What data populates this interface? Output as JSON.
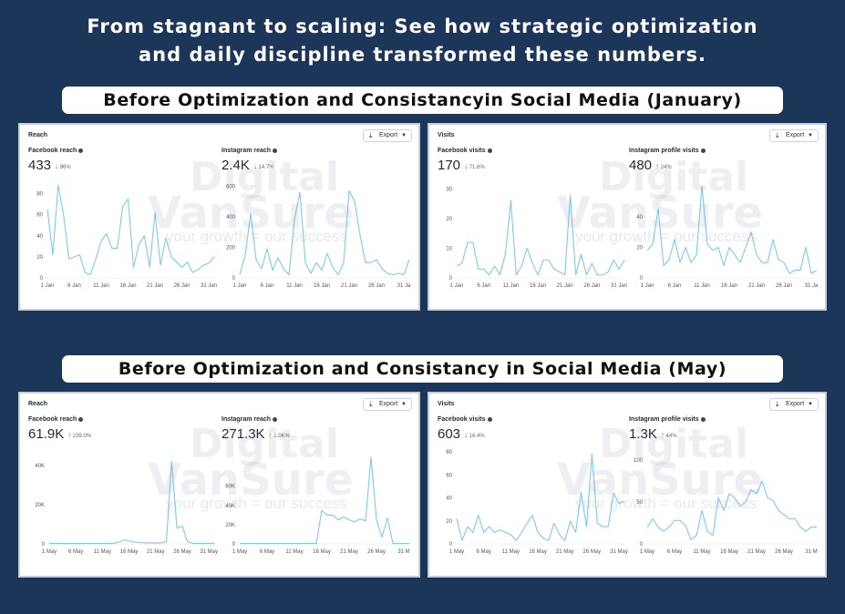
{
  "headline": {
    "line1": "From stagnant to scaling: See how strategic optimization",
    "line2": "and daily discipline transformed these numbers."
  },
  "sections": {
    "january_label": "Before Optimization and Consistancyin Social Media (January)",
    "may_label": "Before Optimization and Consistancy in Social Media (May)"
  },
  "watermark": {
    "brand": "Digital",
    "brand2": "VanSure",
    "tm": "TM",
    "tagline": "your growth = our success"
  },
  "icons": {
    "export": "download-icon",
    "dropdown": "chevron-down-icon",
    "info": "info-icon"
  },
  "colors": {
    "line": "#7fc8f0",
    "background": "#1c365a"
  },
  "cards": {
    "jan_reach": {
      "title": "Reach",
      "export": "Export",
      "m1": {
        "label": "Facebook reach",
        "value": "433",
        "arrow": "↓",
        "change": "96%"
      },
      "m2": {
        "label": "Instagram reach",
        "value": "2.4K",
        "arrow": "↓",
        "change": "14.7%"
      }
    },
    "jan_visits": {
      "title": "Visits",
      "export": "Export",
      "m1": {
        "label": "Facebook visits",
        "value": "170",
        "arrow": "↓",
        "change": "71.6%"
      },
      "m2": {
        "label": "Instagram profile visits",
        "value": "480",
        "arrow": "↑",
        "change": "24%"
      }
    },
    "may_reach": {
      "title": "Reach",
      "export": "Export",
      "m1": {
        "label": "Facebook reach",
        "value": "61.9K",
        "arrow": "↑",
        "change": "239.0%"
      },
      "m2": {
        "label": "Instagram reach",
        "value": "271.3K",
        "arrow": "↑",
        "change": "1.0K%"
      }
    },
    "may_visits": {
      "title": "Visits",
      "export": "Export",
      "m1": {
        "label": "Facebook visits",
        "value": "603",
        "arrow": "↓",
        "change": "16.4%"
      },
      "m2": {
        "label": "Instagram profile visits",
        "value": "1.3K",
        "arrow": "↑",
        "change": "44%"
      }
    }
  },
  "chart_data": [
    {
      "id": "jan_fb_reach",
      "type": "line",
      "title": "Facebook reach",
      "ylim": [
        0,
        90
      ],
      "yticks": [
        "0",
        "20",
        "40",
        "60",
        "80"
      ],
      "ytick_values": [
        0,
        20,
        40,
        60,
        80
      ],
      "xticks": [
        "1 Jan",
        "6 Jan",
        "11 Jan",
        "16 Jan",
        "21 Jan",
        "26 Jan",
        "31 Jan"
      ],
      "xtick_positions": [
        1,
        6,
        11,
        16,
        21,
        26,
        31
      ],
      "x": [
        1,
        2,
        3,
        4,
        5,
        6,
        7,
        8,
        9,
        10,
        11,
        12,
        13,
        14,
        15,
        16,
        17,
        18,
        19,
        20,
        21,
        22,
        23,
        24,
        25,
        26,
        27,
        28,
        29,
        30,
        31,
        32
      ],
      "values": [
        65,
        22,
        88,
        60,
        18,
        20,
        22,
        5,
        3,
        18,
        35,
        42,
        28,
        28,
        68,
        75,
        10,
        32,
        40,
        10,
        62,
        12,
        38,
        20,
        15,
        10,
        15,
        5,
        8,
        12,
        14,
        20
      ]
    },
    {
      "id": "jan_ig_reach",
      "type": "line",
      "title": "Instagram reach",
      "ylim": [
        0,
        620
      ],
      "yticks": [
        "0",
        "200",
        "400",
        "600"
      ],
      "ytick_values": [
        0,
        200,
        400,
        600
      ],
      "xticks": [
        "1 Jan",
        "6 Jan",
        "11 Jan",
        "16 Jan",
        "21 Jan",
        "26 Jan",
        "31 Ja"
      ],
      "xtick_positions": [
        1,
        6,
        11,
        16,
        21,
        26,
        31
      ],
      "x": [
        1,
        2,
        3,
        4,
        5,
        6,
        7,
        8,
        9,
        10,
        11,
        12,
        13,
        14,
        15,
        16,
        17,
        18,
        19,
        20,
        21,
        22,
        23,
        24,
        25,
        26,
        27,
        28,
        29,
        30,
        31,
        32
      ],
      "values": [
        20,
        150,
        420,
        120,
        60,
        190,
        50,
        130,
        60,
        20,
        380,
        560,
        100,
        30,
        100,
        50,
        160,
        70,
        20,
        100,
        570,
        500,
        280,
        100,
        100,
        120,
        60,
        30,
        20,
        30,
        20,
        120
      ]
    },
    {
      "id": "jan_fb_visits",
      "type": "line",
      "title": "Facebook visits",
      "ylim": [
        0,
        32
      ],
      "yticks": [
        "0",
        "10",
        "20",
        "30"
      ],
      "ytick_values": [
        0,
        10,
        20,
        30
      ],
      "xticks": [
        "1 Jan",
        "6 Jan",
        "11 Jan",
        "16 Jan",
        "21 Jan",
        "26 Jan",
        "31 Jan"
      ],
      "xtick_positions": [
        1,
        6,
        11,
        16,
        21,
        26,
        31
      ],
      "x": [
        1,
        2,
        3,
        4,
        5,
        6,
        7,
        8,
        9,
        10,
        11,
        12,
        13,
        14,
        15,
        16,
        17,
        18,
        19,
        20,
        21,
        22,
        23,
        24,
        25,
        26,
        27,
        28,
        29,
        30,
        31,
        32
      ],
      "values": [
        4,
        5,
        12,
        12,
        3,
        3,
        1,
        4,
        1,
        8,
        26,
        1,
        4,
        10,
        5,
        1,
        6,
        6,
        3,
        2,
        1,
        28,
        1,
        8,
        1,
        5,
        1,
        1,
        2,
        6,
        3,
        6
      ]
    },
    {
      "id": "jan_ig_visits",
      "type": "line",
      "title": "Instagram profile visits",
      "ylim": [
        0,
        62
      ],
      "yticks": [
        "0",
        "20",
        "40"
      ],
      "ytick_values": [
        0,
        20,
        40
      ],
      "xticks": [
        "1 Jan",
        "6 Jan",
        "11 Jan",
        "16 Jan",
        "21 Jan",
        "26 Jan",
        "31 Ja"
      ],
      "xtick_positions": [
        1,
        6,
        11,
        16,
        21,
        26,
        31
      ],
      "x": [
        1,
        2,
        3,
        4,
        5,
        6,
        7,
        8,
        9,
        10,
        11,
        12,
        13,
        14,
        15,
        16,
        17,
        18,
        19,
        20,
        21,
        22,
        23,
        24,
        25,
        26,
        27,
        28,
        29,
        30,
        31,
        32
      ],
      "values": [
        18,
        22,
        45,
        8,
        12,
        25,
        10,
        20,
        10,
        15,
        60,
        22,
        18,
        20,
        8,
        20,
        15,
        10,
        20,
        30,
        15,
        10,
        10,
        25,
        12,
        10,
        3,
        5,
        5,
        20,
        3,
        5
      ]
    },
    {
      "id": "may_fb_reach",
      "type": "line",
      "title": "Facebook reach",
      "ylim": [
        0,
        45000
      ],
      "yticks": [
        "0",
        "20K",
        "40K"
      ],
      "ytick_values": [
        0,
        20000,
        40000
      ],
      "xticks": [
        "1 May",
        "6 May",
        "11 May",
        "16 May",
        "21 May",
        "26 May",
        "31 May"
      ],
      "xtick_positions": [
        1,
        6,
        11,
        16,
        21,
        26,
        31
      ],
      "x": [
        1,
        2,
        3,
        4,
        5,
        6,
        7,
        8,
        9,
        10,
        11,
        12,
        13,
        14,
        15,
        16,
        17,
        18,
        19,
        20,
        21,
        22,
        23,
        24,
        25,
        26,
        27,
        28,
        29,
        30,
        31,
        32
      ],
      "values": [
        200,
        200,
        200,
        200,
        200,
        200,
        200,
        200,
        200,
        200,
        200,
        200,
        300,
        800,
        2000,
        1500,
        1000,
        700,
        500,
        500,
        500,
        500,
        1000,
        42000,
        8000,
        9000,
        1000,
        300,
        200,
        200,
        200,
        200
      ]
    },
    {
      "id": "may_ig_reach",
      "type": "line",
      "title": "Instagram reach",
      "ylim": [
        0,
        92000
      ],
      "yticks": [
        "0",
        "20K",
        "40K",
        "60K"
      ],
      "ytick_values": [
        0,
        20000,
        40000,
        60000
      ],
      "xticks": [
        "1 May",
        "6 May",
        "11 May",
        "16 May",
        "21 May",
        "26 May",
        "31 M"
      ],
      "xtick_positions": [
        1,
        6,
        11,
        16,
        21,
        26,
        31
      ],
      "x": [
        1,
        2,
        3,
        4,
        5,
        6,
        7,
        8,
        9,
        10,
        11,
        12,
        13,
        14,
        15,
        16,
        17,
        18,
        19,
        20,
        21,
        22,
        23,
        24,
        25,
        26,
        27,
        28,
        29,
        30,
        31,
        32
      ],
      "values": [
        500,
        500,
        500,
        500,
        500,
        500,
        500,
        500,
        500,
        500,
        500,
        500,
        500,
        500,
        500,
        35000,
        30000,
        30000,
        25000,
        28000,
        25000,
        23000,
        26000,
        24000,
        90000,
        25000,
        7000,
        27000,
        500,
        500,
        500,
        500
      ]
    },
    {
      "id": "may_fb_visits",
      "type": "line",
      "title": "Facebook visits",
      "ylim": [
        0,
        80
      ],
      "yticks": [
        "0",
        "20",
        "40",
        "60",
        "80"
      ],
      "ytick_values": [
        0,
        20,
        40,
        60,
        80
      ],
      "xticks": [
        "1 May",
        "6 May",
        "11 May",
        "16 May",
        "21 May",
        "26 May",
        "31 May"
      ],
      "xtick_positions": [
        1,
        6,
        11,
        16,
        21,
        26,
        31
      ],
      "x": [
        1,
        2,
        3,
        4,
        5,
        6,
        7,
        8,
        9,
        10,
        11,
        12,
        13,
        14,
        15,
        16,
        17,
        18,
        19,
        20,
        21,
        22,
        23,
        24,
        25,
        26,
        27,
        28,
        29,
        30,
        31,
        32
      ],
      "values": [
        22,
        3,
        15,
        10,
        25,
        10,
        15,
        10,
        12,
        10,
        8,
        3,
        10,
        18,
        25,
        10,
        5,
        3,
        18,
        8,
        3,
        20,
        10,
        45,
        15,
        78,
        18,
        15,
        15,
        44,
        35,
        37
      ]
    },
    {
      "id": "may_ig_visits",
      "type": "line",
      "title": "Instagram profile visits",
      "ylim": [
        0,
        110
      ],
      "yticks": [
        "0",
        "50",
        "100"
      ],
      "ytick_values": [
        0,
        50,
        100
      ],
      "xticks": [
        "1 May",
        "6 May",
        "11 May",
        "16 May",
        "21 May",
        "26 May",
        "31 M"
      ],
      "xtick_positions": [
        1,
        6,
        11,
        16,
        21,
        26,
        31
      ],
      "x": [
        1,
        2,
        3,
        4,
        5,
        6,
        7,
        8,
        9,
        10,
        11,
        12,
        13,
        14,
        15,
        16,
        17,
        18,
        19,
        20,
        21,
        22,
        23,
        24,
        25,
        26,
        27,
        28,
        29,
        30,
        31,
        32
      ],
      "values": [
        20,
        30,
        20,
        15,
        20,
        28,
        28,
        22,
        5,
        10,
        40,
        15,
        10,
        55,
        40,
        60,
        55,
        45,
        50,
        65,
        60,
        75,
        55,
        52,
        40,
        35,
        30,
        30,
        20,
        15,
        20,
        20
      ]
    }
  ]
}
